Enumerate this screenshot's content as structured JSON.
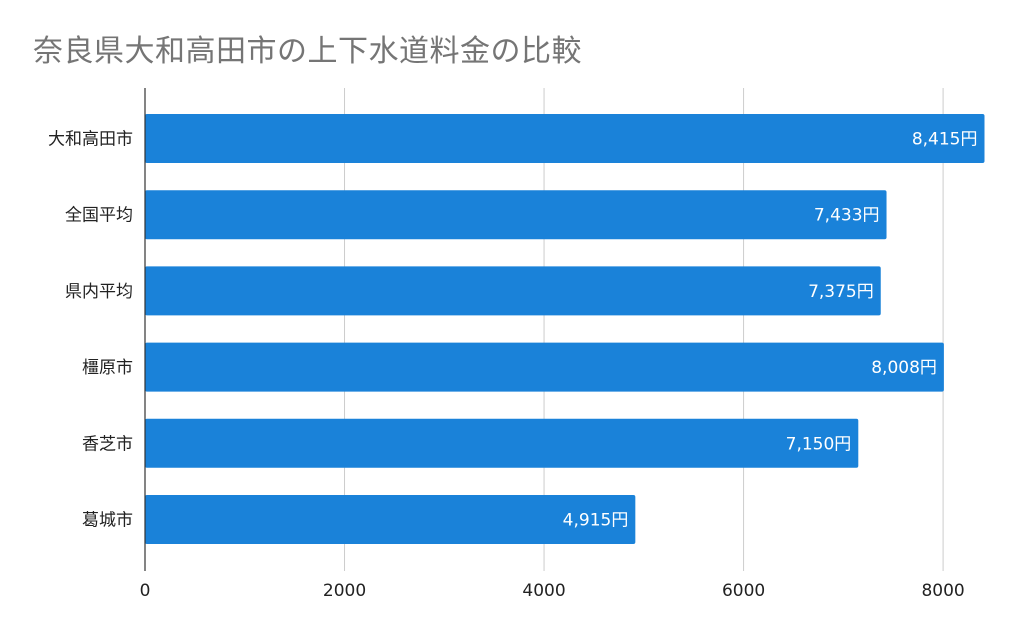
{
  "chart_data": {
    "type": "bar",
    "orientation": "horizontal",
    "title": "奈良県大和高田市の上下水道料金の比較",
    "categories": [
      "大和高田市",
      "全国平均",
      "県内平均",
      "橿原市",
      "香芝市",
      "葛城市"
    ],
    "values": [
      8415,
      7433,
      7375,
      8008,
      7150,
      4915
    ],
    "value_labels": [
      "8,415円",
      "7,433円",
      "7,375円",
      "8,008円",
      "7,150円",
      "4,915円"
    ],
    "x_ticks": [
      0,
      2000,
      4000,
      6000,
      8000
    ],
    "xlim": [
      0,
      8400
    ],
    "xlabel": "",
    "ylabel": "",
    "grid": true,
    "legend": "none",
    "bar_color": "#1a82d9"
  }
}
